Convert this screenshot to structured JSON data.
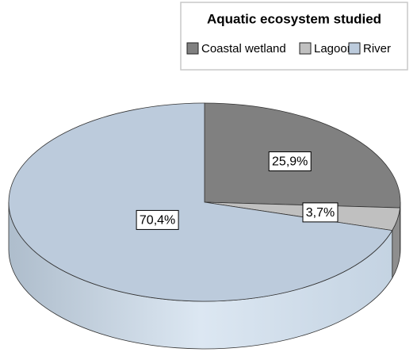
{
  "chart_data": {
    "type": "pie3d",
    "title": "Aquatic ecosystem studied",
    "categories": [
      "Coastal wetland",
      "Lagoon",
      "River"
    ],
    "values": [
      25.9,
      3.7,
      70.4
    ],
    "value_labels": [
      "25,9%",
      "3,7%",
      "70,4%"
    ],
    "colors": [
      "#808080",
      "#c0c0c0",
      "#bccbdc"
    ],
    "legend": "top"
  }
}
